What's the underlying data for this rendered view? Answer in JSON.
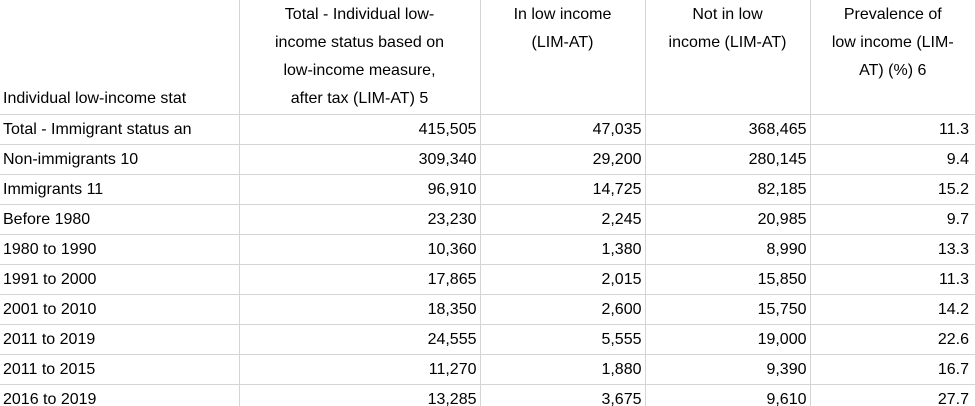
{
  "table": {
    "corner_header": "Individual low-income stat",
    "columns": [
      {
        "full": "Total - Individual low-income status based on low-income measure, after tax (LIM-AT) 5",
        "lines": [
          "Total - Individual low-",
          "income status based on",
          "low-income measure,",
          "after tax (LIM-AT) 5"
        ]
      },
      {
        "full": "In low income (LIM-AT)",
        "lines": [
          "In low income",
          "(LIM-AT)"
        ]
      },
      {
        "full": "Not in low income (LIM-AT)",
        "lines": [
          "Not in low",
          "income (LIM-AT)"
        ]
      },
      {
        "full": "Prevalence of low income (LIM-AT) (%) 6",
        "lines": [
          "Prevalence of",
          "low income (LIM-",
          "AT) (%) 6"
        ]
      }
    ],
    "rows": [
      {
        "label": "Total - Immigrant status an",
        "values": [
          "415,505",
          "47,035",
          "368,465",
          "11.3"
        ]
      },
      {
        "label": "Non-immigrants 10",
        "values": [
          "309,340",
          "29,200",
          "280,145",
          "9.4"
        ]
      },
      {
        "label": "Immigrants 11",
        "values": [
          "96,910",
          "14,725",
          "82,185",
          "15.2"
        ]
      },
      {
        "label": "Before 1980",
        "values": [
          "23,230",
          "2,245",
          "20,985",
          "9.7"
        ]
      },
      {
        "label": "1980 to 1990",
        "values": [
          "10,360",
          "1,380",
          "8,990",
          "13.3"
        ]
      },
      {
        "label": "1991 to 2000",
        "values": [
          "17,865",
          "2,015",
          "15,850",
          "11.3"
        ]
      },
      {
        "label": "2001 to 2010",
        "values": [
          "18,350",
          "2,600",
          "15,750",
          "14.2"
        ]
      },
      {
        "label": "2011 to 2019",
        "values": [
          "24,555",
          "5,555",
          "19,000",
          "22.6"
        ]
      },
      {
        "label": "2011 to 2015",
        "values": [
          "11,270",
          "1,880",
          "9,390",
          "16.7"
        ]
      },
      {
        "label": "2016 to 2019",
        "values": [
          "13,285",
          "3,675",
          "9,610",
          "27.7"
        ]
      }
    ],
    "colors": {
      "grid": "#d5d5d5",
      "text": "#000000",
      "background": "#ffffff"
    }
  }
}
